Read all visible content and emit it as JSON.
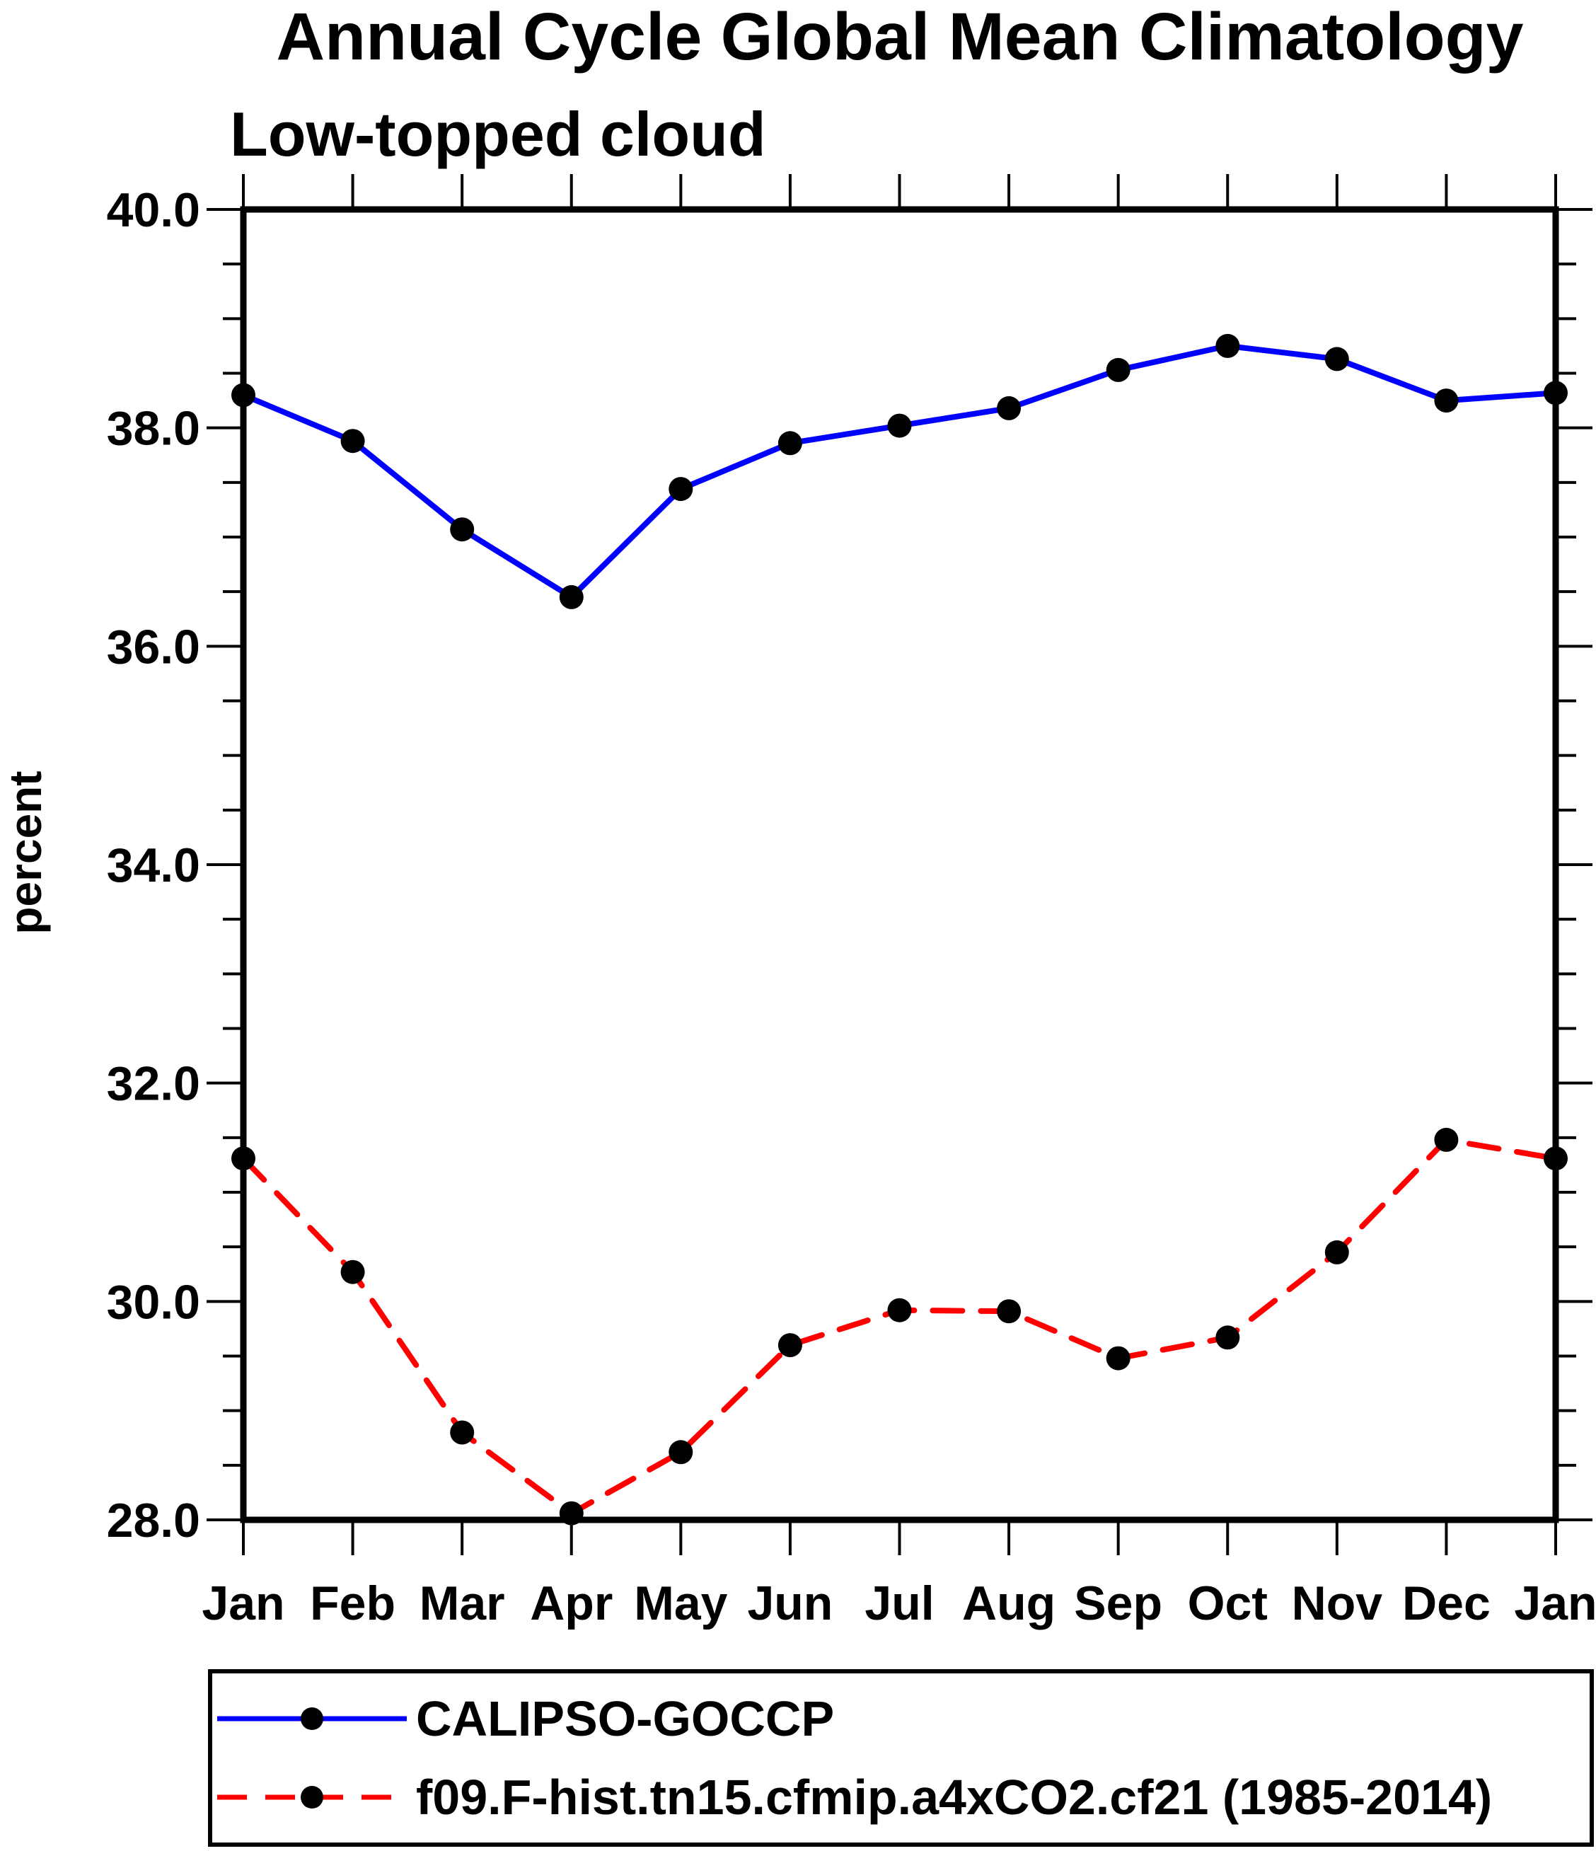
{
  "chart_data": {
    "type": "line",
    "title": "Annual Cycle Global Mean Climatology",
    "subtitle": "Low-topped cloud",
    "ylabel": "percent",
    "categories": [
      "Jan",
      "Feb",
      "Mar",
      "Apr",
      "May",
      "Jun",
      "Jul",
      "Aug",
      "Sep",
      "Oct",
      "Nov",
      "Dec",
      "Jan"
    ],
    "ylim": [
      28.0,
      40.0
    ],
    "y_major_ticks": [
      28.0,
      30.0,
      32.0,
      34.0,
      36.0,
      38.0,
      40.0
    ],
    "y_major_tick_labels": [
      "28.0",
      "30.0",
      "32.0",
      "34.0",
      "36.0",
      "38.0",
      "40.0"
    ],
    "y_minor_interval": 0.5,
    "grid": false,
    "legend_position": "bottom-left-box",
    "axis_color": "#000000",
    "marker_color": "#000000",
    "series": [
      {
        "name": "CALIPSO-GOCCP",
        "color": "#0000ff",
        "style": "solid",
        "marker": "filled-circle",
        "values": [
          38.3,
          37.88,
          37.07,
          36.45,
          37.44,
          37.86,
          38.02,
          38.18,
          38.53,
          38.75,
          38.63,
          38.25,
          38.32
        ]
      },
      {
        "name": "f09.F-hist.tn15.cfmip.a4xCO2.cf21 (1985-2014)",
        "color": "#ff0000",
        "style": "dashed",
        "marker": "filled-circle",
        "values": [
          31.31,
          30.27,
          28.8,
          28.06,
          28.62,
          29.6,
          29.92,
          29.91,
          29.48,
          29.67,
          30.45,
          31.48,
          31.31
        ]
      }
    ]
  }
}
